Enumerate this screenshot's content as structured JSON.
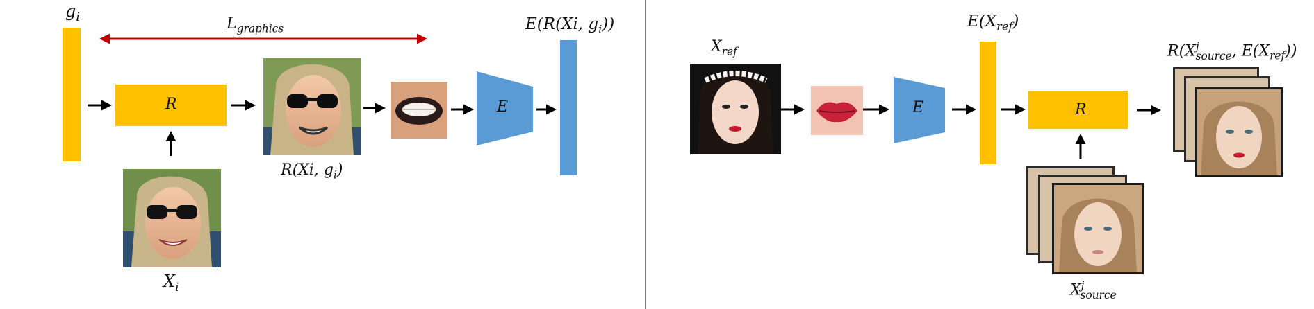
{
  "colors": {
    "generator_yellow": "#FFC000",
    "encoder_blue": "#5B9BD5",
    "loss_red": "#C00000",
    "arrow_black": "#000000",
    "divider_gray": "#555555"
  },
  "left": {
    "g_label": {
      "main": "g",
      "sub": "i"
    },
    "loss_label": {
      "main": "L",
      "sub": "graphics"
    },
    "r_box": "R",
    "e_box": "E",
    "input_label": {
      "main": "X",
      "sub": "i"
    },
    "rendered_label": {
      "pre": "R(Xi, g",
      "sub": "i",
      "post": ")"
    },
    "embedding_label": {
      "pre": "E(R(Xi, g",
      "sub": "i",
      "post": "))"
    },
    "images": [
      "input-face-sunglasses",
      "rendered-face-sunglasses",
      "mouth-crop-dark-lipstick"
    ]
  },
  "right": {
    "ref_label": {
      "main": "X",
      "sub": "ref"
    },
    "e_box": "E",
    "embedding_label": {
      "pre": "E(X",
      "sub": "ref",
      "post": ")"
    },
    "r_box": "R",
    "source_label": {
      "main": "X",
      "sup": "j",
      "sub": "source"
    },
    "output_label": {
      "pre": "R(X",
      "sup": "j",
      "sub": "source",
      "post": ", E(X",
      "sub2": "ref",
      "post2": "))"
    },
    "images": [
      "reference-face-flower-crown",
      "lips-crop-red-lipstick",
      "source-face-stack",
      "output-face-stack"
    ]
  }
}
